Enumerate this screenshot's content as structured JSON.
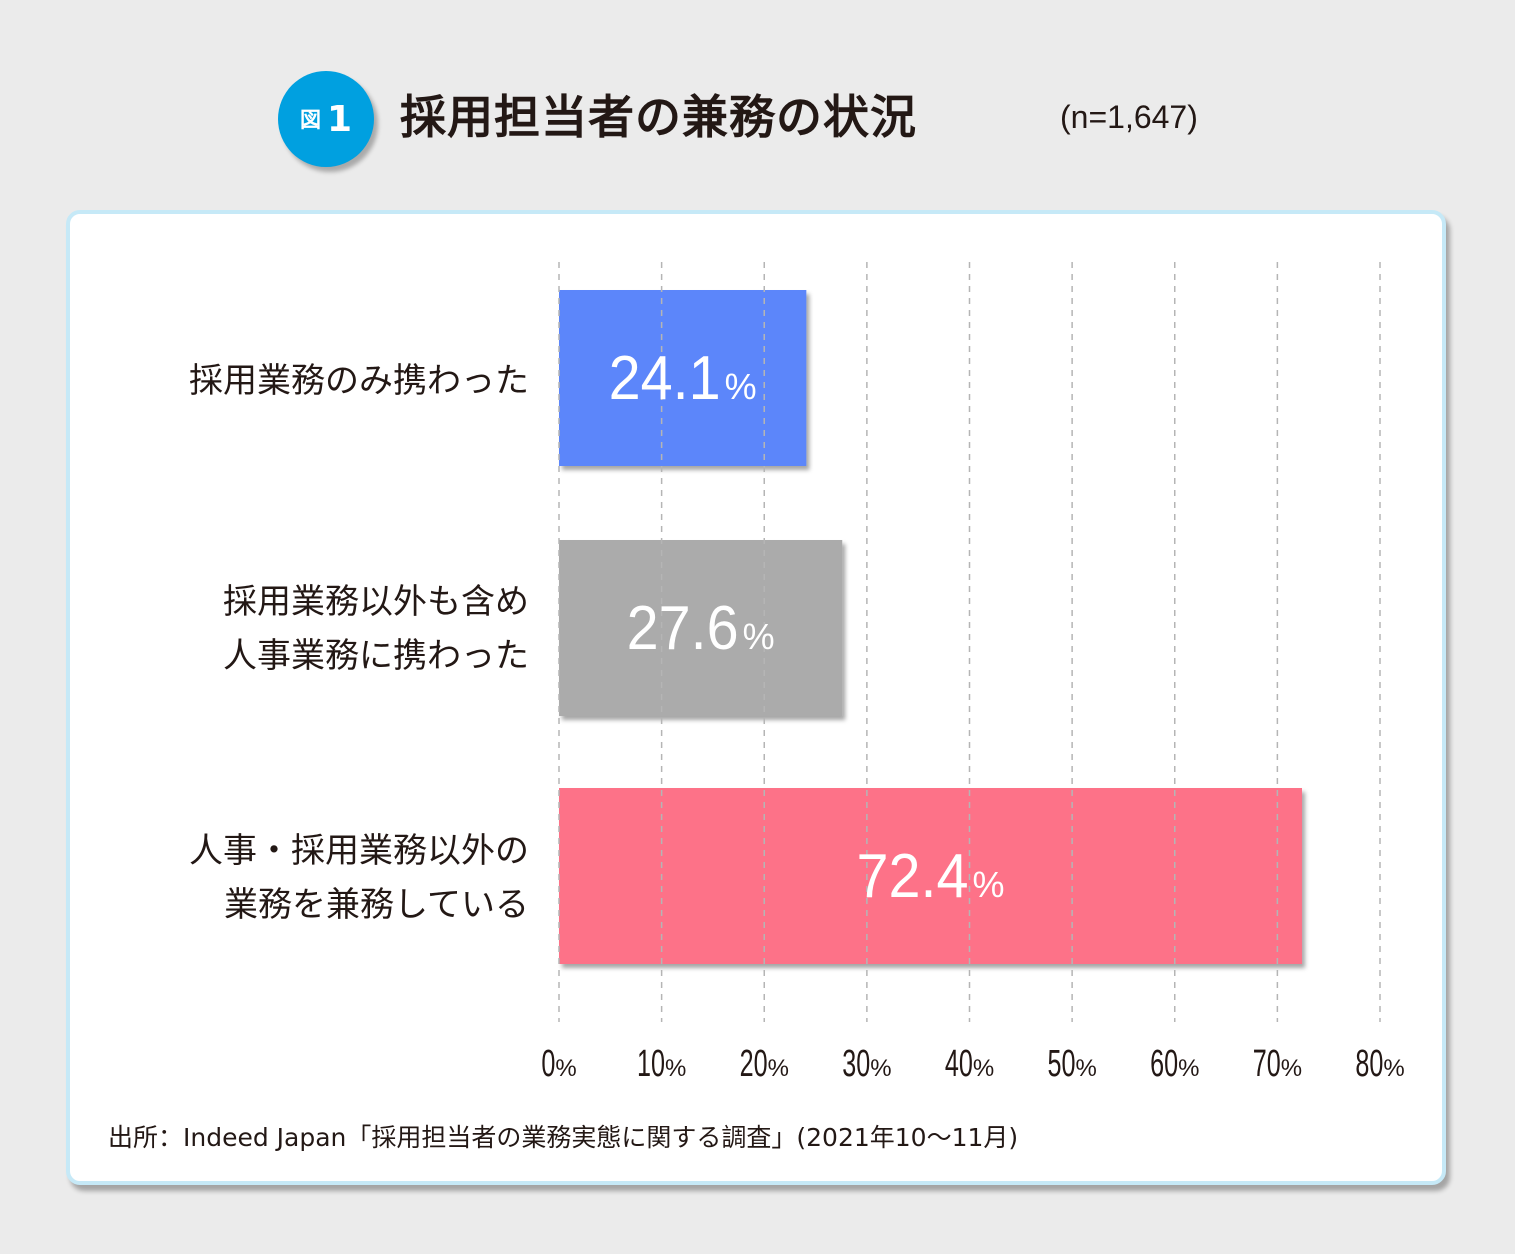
{
  "header": {
    "badge_word": "図",
    "badge_number": "1",
    "title": "採用担当者の兼務の状況",
    "sample_size": "(n=1,647)"
  },
  "chart_data": {
    "type": "bar",
    "orientation": "horizontal",
    "categories": [
      [
        "採用業務のみ携わった"
      ],
      [
        "採用業務以外も含め",
        "人事業務に携わった"
      ],
      [
        "人事・採用業務以外の",
        "業務を兼務している"
      ]
    ],
    "values": [
      24.1,
      27.6,
      72.4
    ],
    "value_labels": [
      "24.1",
      "27.6",
      "72.4"
    ],
    "value_unit": "%",
    "colors": [
      "#5b86fa",
      "#ababab",
      "#fd7288"
    ],
    "xlim": [
      0,
      80
    ],
    "x_ticks": [
      {
        "value": 0,
        "label": "0%"
      },
      {
        "value": 10,
        "label": "10%"
      },
      {
        "value": 20,
        "label": "20%"
      },
      {
        "value": 30,
        "label": "30%"
      },
      {
        "value": 40,
        "label": "40%"
      },
      {
        "value": 50,
        "label": "50%"
      },
      {
        "value": 60,
        "label": "60%"
      },
      {
        "value": 70,
        "label": "70%"
      },
      {
        "value": 80,
        "label": "80%"
      }
    ],
    "grid": "vertical-dashed"
  },
  "footer": {
    "source": "出所：Indeed Japan「採用担当者の業務実態に関する調査」(2021年10～11月)"
  }
}
